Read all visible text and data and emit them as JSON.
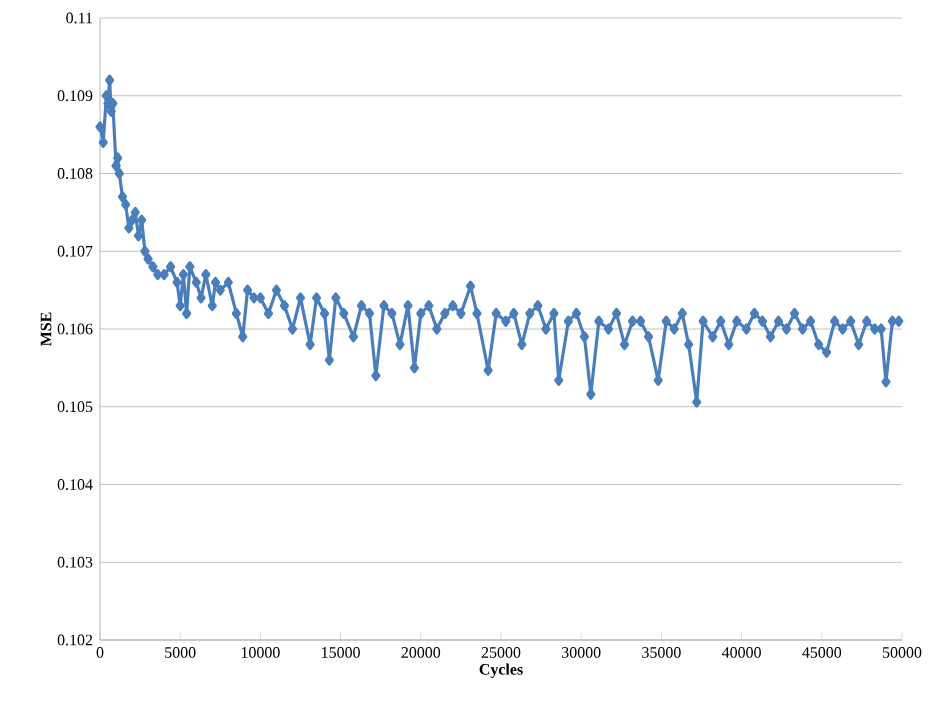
{
  "chart_data": {
    "type": "line",
    "xlabel": "Cycles",
    "ylabel": "MSE",
    "color": "#4a7ebb",
    "marker": "diamond",
    "grid": "y",
    "xlim": [
      0,
      50000
    ],
    "ylim": [
      0.102,
      0.11
    ],
    "xticks": [
      0,
      5000,
      10000,
      15000,
      20000,
      25000,
      30000,
      35000,
      40000,
      45000,
      50000
    ],
    "yticks": [
      0.102,
      0.103,
      0.104,
      0.105,
      0.106,
      0.107,
      0.108,
      0.109,
      0.11
    ],
    "x": [
      0,
      200,
      400,
      500,
      600,
      700,
      800,
      1000,
      1100,
      1200,
      1400,
      1600,
      1800,
      2000,
      2200,
      2400,
      2600,
      2800,
      3000,
      3300,
      3600,
      4000,
      4400,
      4800,
      5000,
      5200,
      5400,
      5600,
      6000,
      6300,
      6600,
      7000,
      7200,
      7500,
      8000,
      8500,
      8900,
      9200,
      9600,
      10000,
      10500,
      11000,
      11500,
      12000,
      12500,
      13100,
      13500,
      14000,
      14300,
      14700,
      15200,
      15800,
      16300,
      16800,
      17200,
      17700,
      18200,
      18700,
      19200,
      19600,
      20000,
      20500,
      21000,
      21500,
      22000,
      22500,
      23100,
      23500,
      24200,
      24700,
      25300,
      25800,
      26300,
      26800,
      27300,
      27800,
      28300,
      28600,
      29200,
      29700,
      30200,
      30600,
      31100,
      31700,
      32200,
      32700,
      33200,
      33700,
      34200,
      34800,
      35300,
      35800,
      36300,
      36700,
      37200,
      37600,
      38200,
      38700,
      39200,
      39700,
      40300,
      40800,
      41300,
      41800,
      42300,
      42800,
      43300,
      43800,
      44300,
      44800,
      45300,
      45800,
      46300,
      46800,
      47300,
      47800,
      48300,
      48700,
      49000,
      49400,
      49800
    ],
    "values": [
      0.1086,
      0.1084,
      0.109,
      0.1089,
      0.1092,
      0.1088,
      0.1089,
      0.1081,
      0.1082,
      0.108,
      0.1077,
      0.1076,
      0.1073,
      0.1074,
      0.1075,
      0.1072,
      0.1074,
      0.107,
      0.1069,
      0.1068,
      0.1067,
      0.1067,
      0.1068,
      0.1066,
      0.1063,
      0.1067,
      0.1062,
      0.1068,
      0.1066,
      0.1064,
      0.1067,
      0.1063,
      0.1066,
      0.1065,
      0.1066,
      0.1062,
      0.1059,
      0.1065,
      0.1064,
      0.1064,
      0.1062,
      0.1065,
      0.1063,
      0.106,
      0.1064,
      0.1058,
      0.1064,
      0.1062,
      0.1056,
      0.1064,
      0.1062,
      0.1059,
      0.1063,
      0.1062,
      0.1054,
      0.1063,
      0.1062,
      0.1058,
      0.1063,
      0.1055,
      0.1062,
      0.1063,
      0.106,
      0.1062,
      0.1063,
      0.1062,
      0.10655,
      0.1062,
      0.10547,
      0.1062,
      0.1061,
      0.1062,
      0.1058,
      0.1062,
      0.1063,
      0.106,
      0.1062,
      0.10534,
      0.1061,
      0.1062,
      0.1059,
      0.10516,
      0.1061,
      0.106,
      0.1062,
      0.1058,
      0.1061,
      0.1061,
      0.1059,
      0.10534,
      0.1061,
      0.106,
      0.1062,
      0.1058,
      0.10506,
      0.1061,
      0.1059,
      0.1061,
      0.1058,
      0.1061,
      0.106,
      0.1062,
      0.1061,
      0.1059,
      0.1061,
      0.106,
      0.1062,
      0.106,
      0.1061,
      0.1058,
      0.1057,
      0.1061,
      0.106,
      0.1061,
      0.1058,
      0.1061,
      0.106,
      0.106,
      0.10532,
      0.1061,
      0.1061
    ]
  }
}
